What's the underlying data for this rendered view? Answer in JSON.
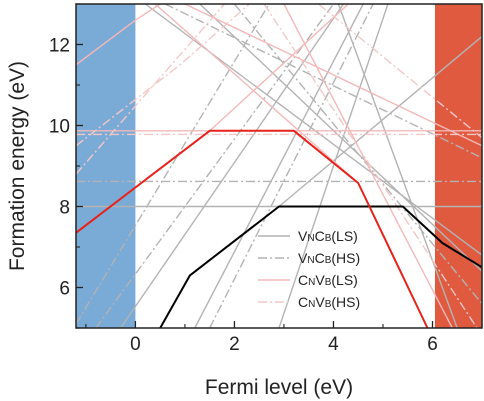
{
  "chart_data": {
    "type": "line",
    "xlabel": "Fermi level (eV)",
    "ylabel": "Formation energy (eV)",
    "xlim": [
      -1.2,
      7.0
    ],
    "ylim": [
      5.0,
      13.0
    ],
    "x_ticks": [
      0,
      2,
      4,
      6
    ],
    "x_tick_labels": [
      "0",
      "2",
      "4",
      "6"
    ],
    "y_ticks": [
      6,
      8,
      10,
      12
    ],
    "y_tick_labels": [
      "6",
      "8",
      "10",
      "12"
    ],
    "grid": false,
    "legend_position": "bottom-right",
    "band_edges": {
      "vbm": 0.0,
      "cbm": 6.05,
      "valence_color": "#7aaad6",
      "conduction_color": "#e05a40"
    },
    "legend": [
      {
        "main": "V",
        "sub1": "N",
        "mid": "C",
        "sub2": "B",
        "tail": "(LS)",
        "color": "#b3b3b3",
        "dash": "solid"
      },
      {
        "main": "V",
        "sub1": "N",
        "mid": "C",
        "sub2": "B",
        "tail": "(HS)",
        "color": "#b3b3b3",
        "dash": "dashdot"
      },
      {
        "main": "C",
        "sub1": "N",
        "mid": "V",
        "sub2": "B",
        "tail": "(LS)",
        "color": "#f4b8b8",
        "dash": "solid"
      },
      {
        "main": "C",
        "sub1": "N",
        "mid": "V",
        "sub2": "B",
        "tail": "(HS)",
        "color": "#f4c7c7",
        "dash": "dashdot"
      }
    ],
    "series": [
      {
        "role": "envelope",
        "color": "#000000",
        "width": 2,
        "dash": "solid",
        "points": [
          [
            0.5,
            5.0
          ],
          [
            1.1,
            6.3
          ],
          [
            2.9,
            8.0
          ],
          [
            5.4,
            8.0
          ],
          [
            6.2,
            7.1
          ],
          [
            7.0,
            6.5
          ]
        ]
      },
      {
        "role": "envelope",
        "color": "#e8221a",
        "width": 2,
        "dash": "solid",
        "points": [
          [
            -1.2,
            7.35
          ],
          [
            1.5,
            9.87
          ],
          [
            3.2,
            9.87
          ],
          [
            4.5,
            8.58
          ],
          [
            5.9,
            5.0
          ]
        ]
      },
      {
        "color": "#b3b3b3",
        "width": 1.4,
        "dash": "solid",
        "points": [
          [
            -1.2,
            8.0
          ],
          [
            7.0,
            8.0
          ]
        ]
      },
      {
        "color": "#b3b3b3",
        "width": 1.4,
        "dash": "solid",
        "points": [
          [
            1.2,
            5.0
          ],
          [
            4.6,
            13.0
          ]
        ]
      },
      {
        "color": "#b3b3b3",
        "width": 1.4,
        "dash": "solid",
        "points": [
          [
            2.9,
            5.0
          ],
          [
            5.1,
            13.0
          ]
        ]
      },
      {
        "color": "#b3b3b3",
        "width": 1.4,
        "dash": "solid",
        "points": [
          [
            -0.3,
            5.0
          ],
          [
            4.2,
            13.0
          ]
        ]
      },
      {
        "color": "#b3b3b3",
        "width": 1.4,
        "dash": "solid",
        "points": [
          [
            2.9,
            8.0
          ],
          [
            7.0,
            12.2
          ]
        ]
      },
      {
        "color": "#b3b3b3",
        "width": 1.4,
        "dash": "solid",
        "points": [
          [
            0.2,
            13.0
          ],
          [
            7.0,
            6.8
          ]
        ]
      },
      {
        "color": "#b3b3b3",
        "width": 1.4,
        "dash": "solid",
        "points": [
          [
            1.3,
            13.0
          ],
          [
            7.0,
            6.4
          ]
        ]
      },
      {
        "color": "#b3b3b3",
        "width": 1.4,
        "dash": "solid",
        "points": [
          [
            4.1,
            13.0
          ],
          [
            6.5,
            5.0
          ]
        ]
      },
      {
        "color": "#b3b3b3",
        "width": 1.4,
        "dash": "dashdot",
        "points": [
          [
            -1.2,
            8.62
          ],
          [
            7.0,
            8.62
          ]
        ]
      },
      {
        "color": "#b3b3b3",
        "width": 1.4,
        "dash": "dashdot",
        "points": [
          [
            -1.2,
            5.1
          ],
          [
            2.7,
            13.0
          ]
        ]
      },
      {
        "color": "#b3b3b3",
        "width": 1.4,
        "dash": "dashdot",
        "points": [
          [
            1.5,
            5.0
          ],
          [
            4.8,
            13.0
          ]
        ]
      },
      {
        "color": "#b3b3b3",
        "width": 1.4,
        "dash": "dashdot",
        "points": [
          [
            -0.8,
            5.0
          ],
          [
            4.0,
            13.0
          ]
        ]
      },
      {
        "color": "#b3b3b3",
        "width": 1.4,
        "dash": "dashdot",
        "points": [
          [
            0.6,
            13.0
          ],
          [
            7.0,
            9.2
          ]
        ]
      },
      {
        "color": "#b3b3b3",
        "width": 1.4,
        "dash": "dashdot",
        "points": [
          [
            2.0,
            13.0
          ],
          [
            7.0,
            5.6
          ]
        ]
      },
      {
        "color": "#f4b8b8",
        "width": 1.4,
        "dash": "solid",
        "points": [
          [
            -1.2,
            9.87
          ],
          [
            7.0,
            9.87
          ]
        ]
      },
      {
        "color": "#f4b8b8",
        "width": 1.4,
        "dash": "solid",
        "points": [
          [
            -1.2,
            7.35
          ],
          [
            1.5,
            9.87
          ],
          [
            4.3,
            13.0
          ]
        ]
      },
      {
        "color": "#f4b8b8",
        "width": 1.4,
        "dash": "solid",
        "points": [
          [
            0.4,
            13.0
          ],
          [
            4.5,
            8.58
          ],
          [
            5.9,
            5.0
          ]
        ]
      },
      {
        "color": "#f4b8b8",
        "width": 1.4,
        "dash": "solid",
        "points": [
          [
            1.0,
            13.0
          ],
          [
            7.0,
            9.5
          ]
        ]
      },
      {
        "color": "#f4b8b8",
        "width": 1.4,
        "dash": "solid",
        "points": [
          [
            3.0,
            13.0
          ],
          [
            6.4,
            5.0
          ]
        ]
      },
      {
        "color": "#f4b8b8",
        "width": 1.4,
        "dash": "solid",
        "points": [
          [
            -1.2,
            11.5
          ],
          [
            0.0,
            12.6
          ],
          [
            0.5,
            13.0
          ]
        ]
      },
      {
        "color": "#f4c7c7",
        "width": 1.4,
        "dash": "dashdot",
        "points": [
          [
            -1.2,
            9.78
          ],
          [
            7.0,
            9.78
          ]
        ]
      },
      {
        "color": "#f4c7c7",
        "width": 1.4,
        "dash": "dashdot",
        "points": [
          [
            -1.2,
            8.8
          ],
          [
            1.8,
            13.0
          ]
        ]
      },
      {
        "color": "#f4c7c7",
        "width": 1.4,
        "dash": "dashdot",
        "points": [
          [
            -1.2,
            9.5
          ],
          [
            0.9,
            11.5
          ],
          [
            2.3,
            13.0
          ]
        ]
      },
      {
        "color": "#f4c7c7",
        "width": 1.4,
        "dash": "dashdot",
        "points": [
          [
            2.6,
            13.0
          ],
          [
            6.9,
            5.0
          ]
        ]
      },
      {
        "color": "#f4c7c7",
        "width": 1.4,
        "dash": "dashdot",
        "points": [
          [
            3.7,
            13.0
          ],
          [
            7.0,
            9.7
          ]
        ]
      }
    ]
  }
}
